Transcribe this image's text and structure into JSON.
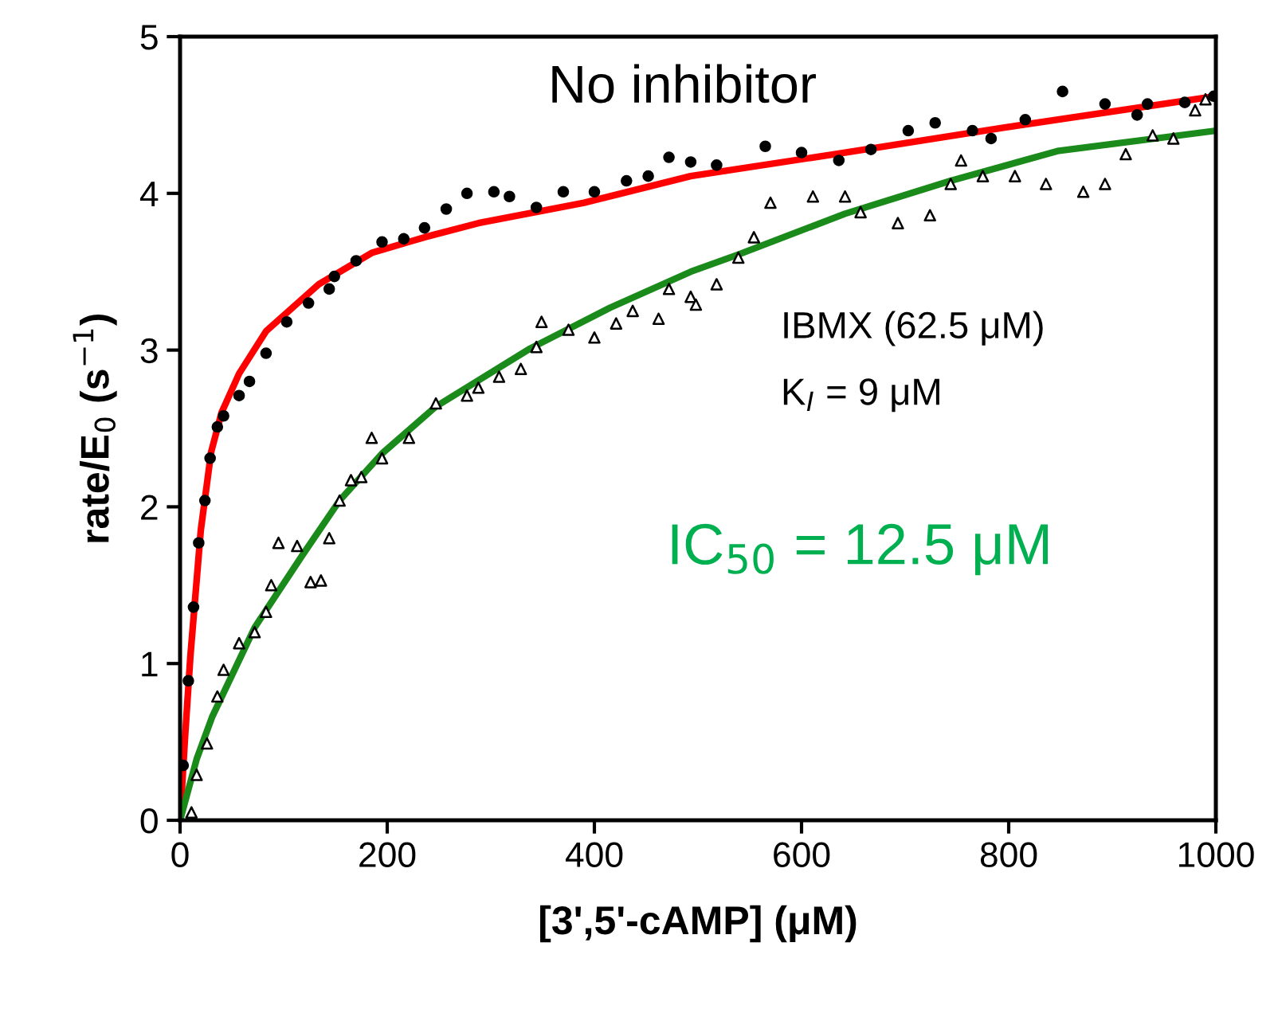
{
  "chart_data": {
    "type": "scatter",
    "xlabel": "[3',5'-cAMP] (μM)",
    "ylabel": "rate/E$_{0}$ (s$^{−1}$)",
    "xlim": [
      0,
      1000
    ],
    "ylim": [
      0,
      5
    ],
    "xticks": [
      0,
      200,
      400,
      600,
      800,
      1000
    ],
    "yticks": [
      0,
      1,
      2,
      3,
      4,
      5
    ],
    "grid": false,
    "annotations": [
      "No inhibitor",
      "IBMX (62.5 μM)",
      "K$_{I}$ = 9 μM",
      "IC$_{50}$ = 12.5 μM"
    ],
    "series": [
      {
        "marker": "circle",
        "color": "#000000",
        "x": [
          3,
          8,
          13,
          18,
          24,
          29,
          36,
          42,
          57,
          67,
          83,
          103,
          124,
          144,
          149,
          170,
          195,
          216,
          236,
          257,
          277,
          303,
          318,
          344,
          370,
          400,
          431,
          452,
          472,
          493,
          518,
          565,
          600,
          636,
          667,
          703,
          729,
          765,
          783,
          816,
          852,
          893,
          924,
          934,
          970,
          998
        ],
        "values": [
          0.35,
          0.89,
          1.36,
          1.77,
          2.04,
          2.31,
          2.51,
          2.58,
          2.71,
          2.8,
          2.98,
          3.18,
          3.3,
          3.39,
          3.47,
          3.57,
          3.69,
          3.71,
          3.78,
          3.9,
          4.0,
          4.01,
          3.98,
          3.91,
          4.01,
          4.01,
          4.08,
          4.11,
          4.23,
          4.2,
          4.18,
          4.3,
          4.26,
          4.21,
          4.28,
          4.4,
          4.45,
          4.4,
          4.35,
          4.47,
          4.65,
          4.57,
          4.5,
          4.57,
          4.58,
          4.62
        ]
      },
      {
        "marker": "triangle",
        "color": "#000000",
        "x": [
          11,
          16,
          26,
          36,
          42,
          57,
          72,
          83,
          88,
          95,
          113,
          126,
          136,
          144,
          154,
          165,
          175,
          185,
          195,
          221,
          247,
          277,
          288,
          308,
          329,
          344,
          349,
          375,
          400,
          421,
          437,
          462,
          472,
          493,
          498,
          518,
          539,
          554,
          570,
          611,
          642,
          657,
          693,
          724,
          744,
          754,
          775,
          806,
          836,
          872,
          893,
          913,
          939,
          959,
          980,
          990
        ],
        "values": [
          0.05,
          0.29,
          0.49,
          0.79,
          0.96,
          1.13,
          1.2,
          1.33,
          1.5,
          1.77,
          1.75,
          1.52,
          1.53,
          1.8,
          2.04,
          2.17,
          2.19,
          2.44,
          2.31,
          2.44,
          2.66,
          2.71,
          2.76,
          2.83,
          2.88,
          3.02,
          3.18,
          3.13,
          3.08,
          3.17,
          3.25,
          3.2,
          3.39,
          3.34,
          3.29,
          3.42,
          3.59,
          3.72,
          3.94,
          3.98,
          3.98,
          3.88,
          3.81,
          3.86,
          4.06,
          4.21,
          4.11,
          4.11,
          4.06,
          4.01,
          4.06,
          4.25,
          4.37,
          4.35,
          4.53,
          4.6
        ]
      },
      {
        "type": "line",
        "color": "#ff0000",
        "x": [
          0,
          5,
          10,
          20,
          30,
          40,
          57,
          83,
          134,
          185,
          236,
          288,
          390,
          493,
          642,
          796,
          1000
        ],
        "values": [
          0,
          0.55,
          1.05,
          1.85,
          2.35,
          2.6,
          2.85,
          3.12,
          3.42,
          3.62,
          3.72,
          3.81,
          3.94,
          4.11,
          4.26,
          4.42,
          4.62
        ]
      },
      {
        "type": "line",
        "color": "#1a8a1a",
        "x": [
          0,
          16,
          31,
          72,
          118,
          154,
          195,
          247,
          338,
          415,
          493,
          539,
          642,
          744,
          847,
          1000
        ],
        "values": [
          0,
          0.39,
          0.66,
          1.23,
          1.69,
          2.04,
          2.34,
          2.64,
          3.01,
          3.27,
          3.5,
          3.61,
          3.87,
          4.08,
          4.27,
          4.4
        ]
      }
    ]
  }
}
